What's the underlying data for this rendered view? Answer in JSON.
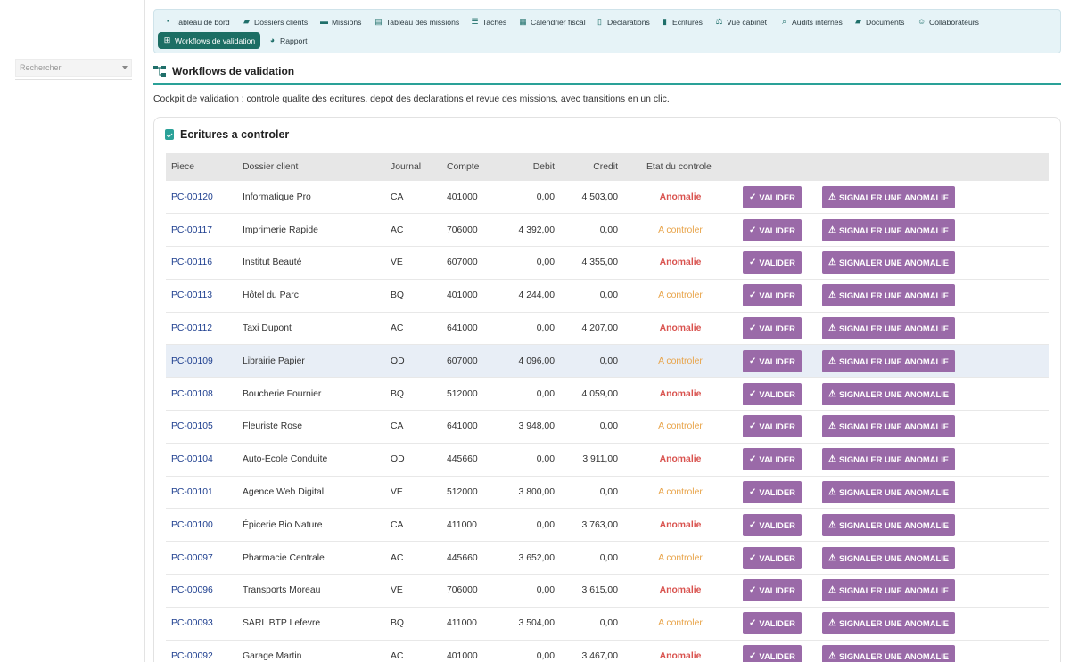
{
  "sidebar": {
    "search_placeholder": "Rechercher"
  },
  "nav": {
    "items": [
      {
        "label": "Tableau de bord",
        "icon": "dashboard-icon"
      },
      {
        "label": "Dossiers clients",
        "icon": "folder-open-icon"
      },
      {
        "label": "Missions",
        "icon": "briefcase-icon"
      },
      {
        "label": "Tableau des missions",
        "icon": "table-icon"
      },
      {
        "label": "Taches",
        "icon": "list-icon"
      },
      {
        "label": "Calendrier fiscal",
        "icon": "calendar-icon"
      },
      {
        "label": "Declarations",
        "icon": "file-icon"
      },
      {
        "label": "Ecritures",
        "icon": "book-icon"
      },
      {
        "label": "Vue cabinet",
        "icon": "balance-scale-icon"
      },
      {
        "label": "Audits internes",
        "icon": "search-icon"
      },
      {
        "label": "Documents",
        "icon": "folder-icon"
      },
      {
        "label": "Collaborateurs",
        "icon": "users-icon"
      },
      {
        "label": "Workflows de validation",
        "icon": "sitemap-icon"
      },
      {
        "label": "Rapport",
        "icon": "pie-chart-icon"
      }
    ]
  },
  "page": {
    "title": "Workflows de validation",
    "subtitle": "Cockpit de validation : controle qualite des ecritures, depot des declarations et revue des missions, avec transitions en un clic."
  },
  "card": {
    "title": "Ecritures a controler",
    "columns": [
      "Piece",
      "Dossier client",
      "Journal",
      "Compte",
      "Debit",
      "Credit",
      "Etat du controle"
    ],
    "btn_validate": "VALIDER",
    "btn_report": "SIGNALER UNE ANOMALIE",
    "rows": [
      {
        "piece": "PC-00120",
        "client": "Informatique Pro",
        "journal": "CA",
        "compte": "401000",
        "debit": "0,00",
        "credit": "4 503,00",
        "etat": "Anomalie"
      },
      {
        "piece": "PC-00117",
        "client": "Imprimerie Rapide",
        "journal": "AC",
        "compte": "706000",
        "debit": "4 392,00",
        "credit": "0,00",
        "etat": "A controler"
      },
      {
        "piece": "PC-00116",
        "client": "Institut Beauté",
        "journal": "VE",
        "compte": "607000",
        "debit": "0,00",
        "credit": "4 355,00",
        "etat": "Anomalie"
      },
      {
        "piece": "PC-00113",
        "client": "Hôtel du Parc",
        "journal": "BQ",
        "compte": "401000",
        "debit": "4 244,00",
        "credit": "0,00",
        "etat": "A controler"
      },
      {
        "piece": "PC-00112",
        "client": "Taxi Dupont",
        "journal": "AC",
        "compte": "641000",
        "debit": "0,00",
        "credit": "4 207,00",
        "etat": "Anomalie"
      },
      {
        "piece": "PC-00109",
        "client": "Librairie Papier",
        "journal": "OD",
        "compte": "607000",
        "debit": "4 096,00",
        "credit": "0,00",
        "etat": "A controler"
      },
      {
        "piece": "PC-00108",
        "client": "Boucherie Fournier",
        "journal": "BQ",
        "compte": "512000",
        "debit": "0,00",
        "credit": "4 059,00",
        "etat": "Anomalie"
      },
      {
        "piece": "PC-00105",
        "client": "Fleuriste Rose",
        "journal": "CA",
        "compte": "641000",
        "debit": "3 948,00",
        "credit": "0,00",
        "etat": "A controler"
      },
      {
        "piece": "PC-00104",
        "client": "Auto-École Conduite",
        "journal": "OD",
        "compte": "445660",
        "debit": "0,00",
        "credit": "3 911,00",
        "etat": "Anomalie"
      },
      {
        "piece": "PC-00101",
        "client": "Agence Web Digital",
        "journal": "VE",
        "compte": "512000",
        "debit": "3 800,00",
        "credit": "0,00",
        "etat": "A controler"
      },
      {
        "piece": "PC-00100",
        "client": "Épicerie Bio Nature",
        "journal": "CA",
        "compte": "411000",
        "debit": "0,00",
        "credit": "3 763,00",
        "etat": "Anomalie"
      },
      {
        "piece": "PC-00097",
        "client": "Pharmacie Centrale",
        "journal": "AC",
        "compte": "445660",
        "debit": "3 652,00",
        "credit": "0,00",
        "etat": "A controler"
      },
      {
        "piece": "PC-00096",
        "client": "Transports Moreau",
        "journal": "VE",
        "compte": "706000",
        "debit": "0,00",
        "credit": "3 615,00",
        "etat": "Anomalie"
      },
      {
        "piece": "PC-00093",
        "client": "SARL BTP Lefevre",
        "journal": "BQ",
        "compte": "411000",
        "debit": "3 504,00",
        "credit": "0,00",
        "etat": "A controler"
      },
      {
        "piece": "PC-00092",
        "client": "Garage Martin",
        "journal": "AC",
        "compte": "401000",
        "debit": "0,00",
        "credit": "3 467,00",
        "etat": "Anomalie"
      }
    ]
  },
  "colors": {
    "accent": "#2aa198",
    "button": "#9a6aa8",
    "anomalie": "#d9534f",
    "a_controler": "#e8a44a",
    "nav_active": "#1c6e64"
  }
}
